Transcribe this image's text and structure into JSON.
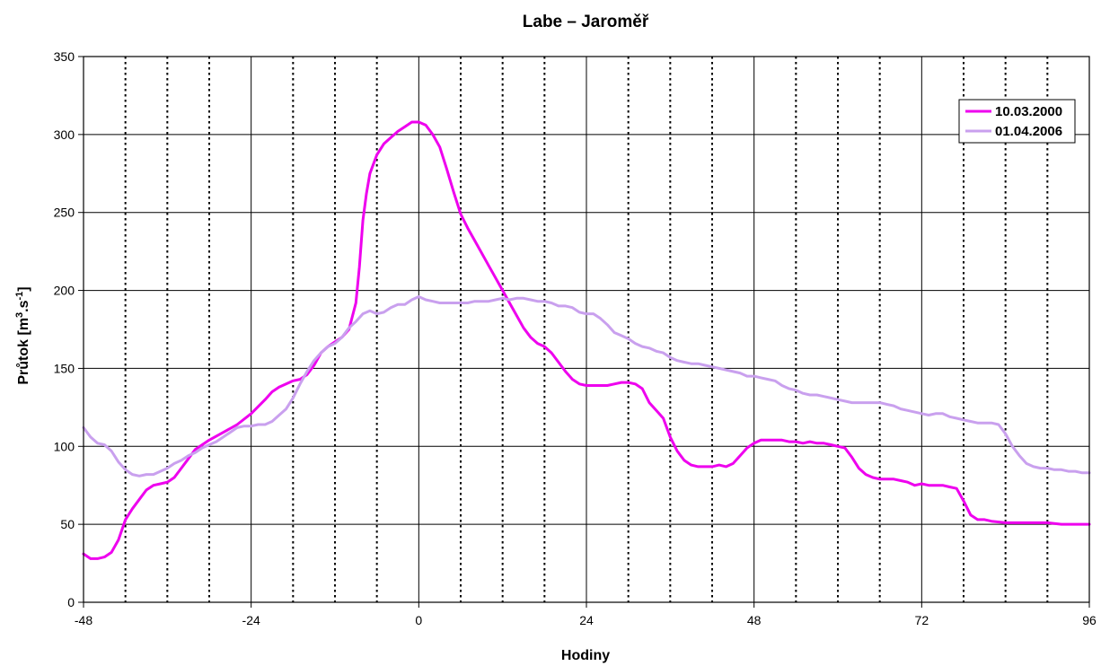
{
  "chart_data": {
    "type": "line",
    "title": "Labe – Jaroměř",
    "xlabel": "Hodiny",
    "ylabel": {
      "main": "Průtok [m",
      "sup1": "3",
      "mid": ".s",
      "sup2": "-1",
      "end": "]"
    },
    "xlim": [
      -48,
      96
    ],
    "ylim": [
      0,
      350
    ],
    "x_ticks": [
      -48,
      -24,
      0,
      24,
      48,
      72,
      96
    ],
    "y_ticks": [
      0,
      50,
      100,
      150,
      200,
      250,
      300,
      350
    ],
    "x_major_gridlines": [
      -24,
      0,
      24,
      48,
      72
    ],
    "x_minor_dotted_gridlines": [
      -42,
      -36,
      -30,
      -18,
      -12,
      -6,
      6,
      12,
      18,
      30,
      36,
      42,
      54,
      60,
      66,
      78,
      84,
      90
    ],
    "y_gridlines": [
      50,
      100,
      150,
      200,
      250,
      300
    ],
    "legend_position": "top-right",
    "series": [
      {
        "name": "10.03.2000",
        "color": "#ee00ee",
        "points": [
          [
            -48,
            31
          ],
          [
            -47,
            28
          ],
          [
            -46,
            28
          ],
          [
            -45,
            29
          ],
          [
            -44,
            32
          ],
          [
            -43,
            40
          ],
          [
            -42,
            53
          ],
          [
            -41,
            60
          ],
          [
            -40,
            66
          ],
          [
            -39,
            72
          ],
          [
            -38,
            75
          ],
          [
            -37,
            76
          ],
          [
            -36,
            77
          ],
          [
            -35,
            80
          ],
          [
            -34,
            86
          ],
          [
            -33,
            92
          ],
          [
            -32,
            98
          ],
          [
            -30,
            104
          ],
          [
            -28,
            109
          ],
          [
            -26,
            114
          ],
          [
            -24,
            121
          ],
          [
            -22,
            130
          ],
          [
            -21,
            135
          ],
          [
            -20,
            138
          ],
          [
            -19,
            140
          ],
          [
            -18,
            142
          ],
          [
            -17,
            143
          ],
          [
            -16,
            146
          ],
          [
            -15,
            152
          ],
          [
            -14,
            160
          ],
          [
            -13,
            164
          ],
          [
            -12,
            167
          ],
          [
            -11,
            170
          ],
          [
            -10,
            175
          ],
          [
            -9,
            192
          ],
          [
            -8.5,
            215
          ],
          [
            -8,
            245
          ],
          [
            -7.5,
            262
          ],
          [
            -7,
            275
          ],
          [
            -6,
            287
          ],
          [
            -5,
            294
          ],
          [
            -4,
            298
          ],
          [
            -3,
            302
          ],
          [
            -2,
            305
          ],
          [
            -1,
            308
          ],
          [
            0,
            308
          ],
          [
            1,
            306
          ],
          [
            2,
            300
          ],
          [
            3,
            292
          ],
          [
            4,
            278
          ],
          [
            5,
            263
          ],
          [
            6,
            249
          ],
          [
            7,
            240
          ],
          [
            8,
            232
          ],
          [
            10,
            216
          ],
          [
            12,
            200
          ],
          [
            13,
            192
          ],
          [
            14,
            184
          ],
          [
            15,
            176
          ],
          [
            16,
            170
          ],
          [
            17,
            166
          ],
          [
            18,
            164
          ],
          [
            19,
            160
          ],
          [
            20,
            154
          ],
          [
            21,
            148
          ],
          [
            22,
            143
          ],
          [
            23,
            140
          ],
          [
            24,
            139
          ],
          [
            26,
            139
          ],
          [
            27,
            139
          ],
          [
            28,
            140
          ],
          [
            29,
            141
          ],
          [
            30,
            141
          ],
          [
            31,
            140
          ],
          [
            32,
            137
          ],
          [
            33,
            128
          ],
          [
            34,
            123
          ],
          [
            35,
            118
          ],
          [
            36,
            106
          ],
          [
            37,
            97
          ],
          [
            38,
            91
          ],
          [
            39,
            88
          ],
          [
            40,
            87
          ],
          [
            41,
            87
          ],
          [
            42,
            87
          ],
          [
            43,
            88
          ],
          [
            44,
            87
          ],
          [
            45,
            89
          ],
          [
            46,
            94
          ],
          [
            47,
            99
          ],
          [
            48,
            102
          ],
          [
            49,
            104
          ],
          [
            51,
            104
          ],
          [
            52,
            104
          ],
          [
            53,
            103
          ],
          [
            54,
            103
          ],
          [
            55,
            102
          ],
          [
            56,
            103
          ],
          [
            57,
            102
          ],
          [
            58,
            102
          ],
          [
            59,
            101
          ],
          [
            60,
            100
          ],
          [
            61,
            99
          ],
          [
            62,
            93
          ],
          [
            63,
            86
          ],
          [
            64,
            82
          ],
          [
            65,
            80
          ],
          [
            66,
            79
          ],
          [
            67,
            79
          ],
          [
            68,
            79
          ],
          [
            69,
            78
          ],
          [
            70,
            77
          ],
          [
            71,
            75
          ],
          [
            72,
            76
          ],
          [
            73,
            75
          ],
          [
            74,
            75
          ],
          [
            75,
            75
          ],
          [
            76,
            74
          ],
          [
            77,
            73
          ],
          [
            78,
            65
          ],
          [
            79,
            56
          ],
          [
            80,
            53
          ],
          [
            81,
            53
          ],
          [
            82,
            52
          ],
          [
            84,
            51
          ],
          [
            86,
            51
          ],
          [
            88,
            51
          ],
          [
            90,
            51
          ],
          [
            92,
            50
          ],
          [
            96,
            50
          ]
        ]
      },
      {
        "name": "01.04.2006",
        "color": "#c9a0ee",
        "points": [
          [
            -48,
            112
          ],
          [
            -47,
            106
          ],
          [
            -46,
            102
          ],
          [
            -45,
            101
          ],
          [
            -44,
            97
          ],
          [
            -43,
            90
          ],
          [
            -42,
            85
          ],
          [
            -41,
            82
          ],
          [
            -40,
            81
          ],
          [
            -39,
            82
          ],
          [
            -38,
            82
          ],
          [
            -37,
            84
          ],
          [
            -36,
            86
          ],
          [
            -35,
            89
          ],
          [
            -34,
            91
          ],
          [
            -33,
            94
          ],
          [
            -32,
            96
          ],
          [
            -31,
            99
          ],
          [
            -30,
            101
          ],
          [
            -29,
            103
          ],
          [
            -28,
            106
          ],
          [
            -27,
            109
          ],
          [
            -26,
            112
          ],
          [
            -25,
            113
          ],
          [
            -24,
            113
          ],
          [
            -23,
            114
          ],
          [
            -22,
            114
          ],
          [
            -21,
            116
          ],
          [
            -20,
            120
          ],
          [
            -19,
            124
          ],
          [
            -18,
            131
          ],
          [
            -17,
            140
          ],
          [
            -16,
            148
          ],
          [
            -15,
            155
          ],
          [
            -14,
            160
          ],
          [
            -13,
            164
          ],
          [
            -12,
            166
          ],
          [
            -11,
            170
          ],
          [
            -10,
            176
          ],
          [
            -9,
            180
          ],
          [
            -8,
            185
          ],
          [
            -7,
            187
          ],
          [
            -6,
            185
          ],
          [
            -5,
            186
          ],
          [
            -4,
            189
          ],
          [
            -3,
            191
          ],
          [
            -2,
            191
          ],
          [
            -1,
            194
          ],
          [
            0,
            196
          ],
          [
            1,
            194
          ],
          [
            2,
            193
          ],
          [
            3,
            192
          ],
          [
            4,
            192
          ],
          [
            5,
            192
          ],
          [
            6,
            192
          ],
          [
            7,
            192
          ],
          [
            8,
            193
          ],
          [
            9,
            193
          ],
          [
            10,
            193
          ],
          [
            11,
            194
          ],
          [
            12,
            195
          ],
          [
            13,
            194
          ],
          [
            14,
            195
          ],
          [
            15,
            195
          ],
          [
            16,
            194
          ],
          [
            17,
            193
          ],
          [
            18,
            193
          ],
          [
            19,
            192
          ],
          [
            20,
            190
          ],
          [
            21,
            190
          ],
          [
            22,
            189
          ],
          [
            23,
            186
          ],
          [
            24,
            185
          ],
          [
            25,
            185
          ],
          [
            26,
            182
          ],
          [
            27,
            178
          ],
          [
            28,
            173
          ],
          [
            29,
            171
          ],
          [
            30,
            169
          ],
          [
            31,
            166
          ],
          [
            32,
            164
          ],
          [
            33,
            163
          ],
          [
            34,
            161
          ],
          [
            35,
            160
          ],
          [
            36,
            157
          ],
          [
            37,
            155
          ],
          [
            38,
            154
          ],
          [
            39,
            153
          ],
          [
            40,
            153
          ],
          [
            41,
            152
          ],
          [
            42,
            151
          ],
          [
            43,
            150
          ],
          [
            44,
            149
          ],
          [
            45,
            148
          ],
          [
            46,
            147
          ],
          [
            47,
            145
          ],
          [
            48,
            145
          ],
          [
            49,
            144
          ],
          [
            50,
            143
          ],
          [
            51,
            142
          ],
          [
            52,
            139
          ],
          [
            53,
            137
          ],
          [
            54,
            136
          ],
          [
            55,
            134
          ],
          [
            56,
            133
          ],
          [
            57,
            133
          ],
          [
            58,
            132
          ],
          [
            59,
            131
          ],
          [
            60,
            130
          ],
          [
            61,
            129
          ],
          [
            62,
            128
          ],
          [
            63,
            128
          ],
          [
            64,
            128
          ],
          [
            65,
            128
          ],
          [
            66,
            128
          ],
          [
            67,
            127
          ],
          [
            68,
            126
          ],
          [
            69,
            124
          ],
          [
            70,
            123
          ],
          [
            71,
            122
          ],
          [
            72,
            121
          ],
          [
            73,
            120
          ],
          [
            74,
            121
          ],
          [
            75,
            121
          ],
          [
            76,
            119
          ],
          [
            77,
            118
          ],
          [
            78,
            117
          ],
          [
            79,
            116
          ],
          [
            80,
            115
          ],
          [
            81,
            115
          ],
          [
            82,
            115
          ],
          [
            83,
            114
          ],
          [
            84,
            108
          ],
          [
            85,
            100
          ],
          [
            86,
            94
          ],
          [
            87,
            89
          ],
          [
            88,
            87
          ],
          [
            89,
            86
          ],
          [
            90,
            86
          ],
          [
            91,
            85
          ],
          [
            92,
            85
          ],
          [
            93,
            84
          ],
          [
            94,
            84
          ],
          [
            95,
            83
          ],
          [
            96,
            83
          ]
        ]
      }
    ]
  }
}
